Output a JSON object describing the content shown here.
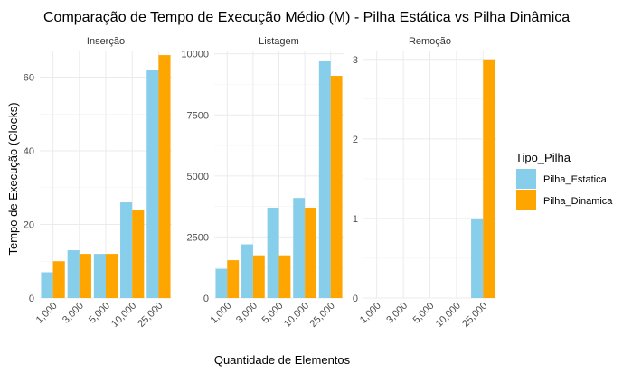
{
  "chart_data": {
    "type": "bar",
    "title": "Comparação de Tempo de Execução Médio (M) - Pilha Estática vs Pilha Dinâmica",
    "xlabel": "Quantidade de Elementos",
    "ylabel": "Tempo de Execução (Clocks)",
    "categories": [
      "1,000",
      "3,000",
      "5,000",
      "10,000",
      "25,000"
    ],
    "legend": {
      "title": "Tipo_Pilha",
      "position": "right",
      "entries": [
        {
          "name": "Pilha_Estatica",
          "color": "#87CEEB"
        },
        {
          "name": "Pilha_Dinamica",
          "color": "#FFA500"
        }
      ]
    },
    "grid": true,
    "facets": [
      {
        "name": "Inserção",
        "ylim": [
          0,
          67
        ],
        "yticks": [
          0,
          20,
          40,
          60
        ],
        "series": [
          {
            "name": "Pilha_Estatica",
            "values": [
              7,
              13,
              12,
              26,
              62
            ]
          },
          {
            "name": "Pilha_Dinamica",
            "values": [
              10,
              12,
              12,
              24,
              66
            ]
          }
        ]
      },
      {
        "name": "Listagem",
        "ylim": [
          0,
          10100
        ],
        "yticks": [
          0,
          2500,
          5000,
          7500,
          10000
        ],
        "series": [
          {
            "name": "Pilha_Estatica",
            "values": [
              1200,
              2200,
              3700,
              4100,
              9700
            ]
          },
          {
            "name": "Pilha_Dinamica",
            "values": [
              1550,
              1750,
              1750,
              3700,
              9100
            ]
          }
        ]
      },
      {
        "name": "Remoção",
        "ylim": [
          0,
          3.1
        ],
        "yticks": [
          0,
          1,
          2,
          3
        ],
        "series": [
          {
            "name": "Pilha_Estatica",
            "values": [
              0,
              0,
              0,
              0,
              1
            ]
          },
          {
            "name": "Pilha_Dinamica",
            "values": [
              0,
              0,
              0,
              0,
              3
            ]
          }
        ]
      }
    ]
  }
}
